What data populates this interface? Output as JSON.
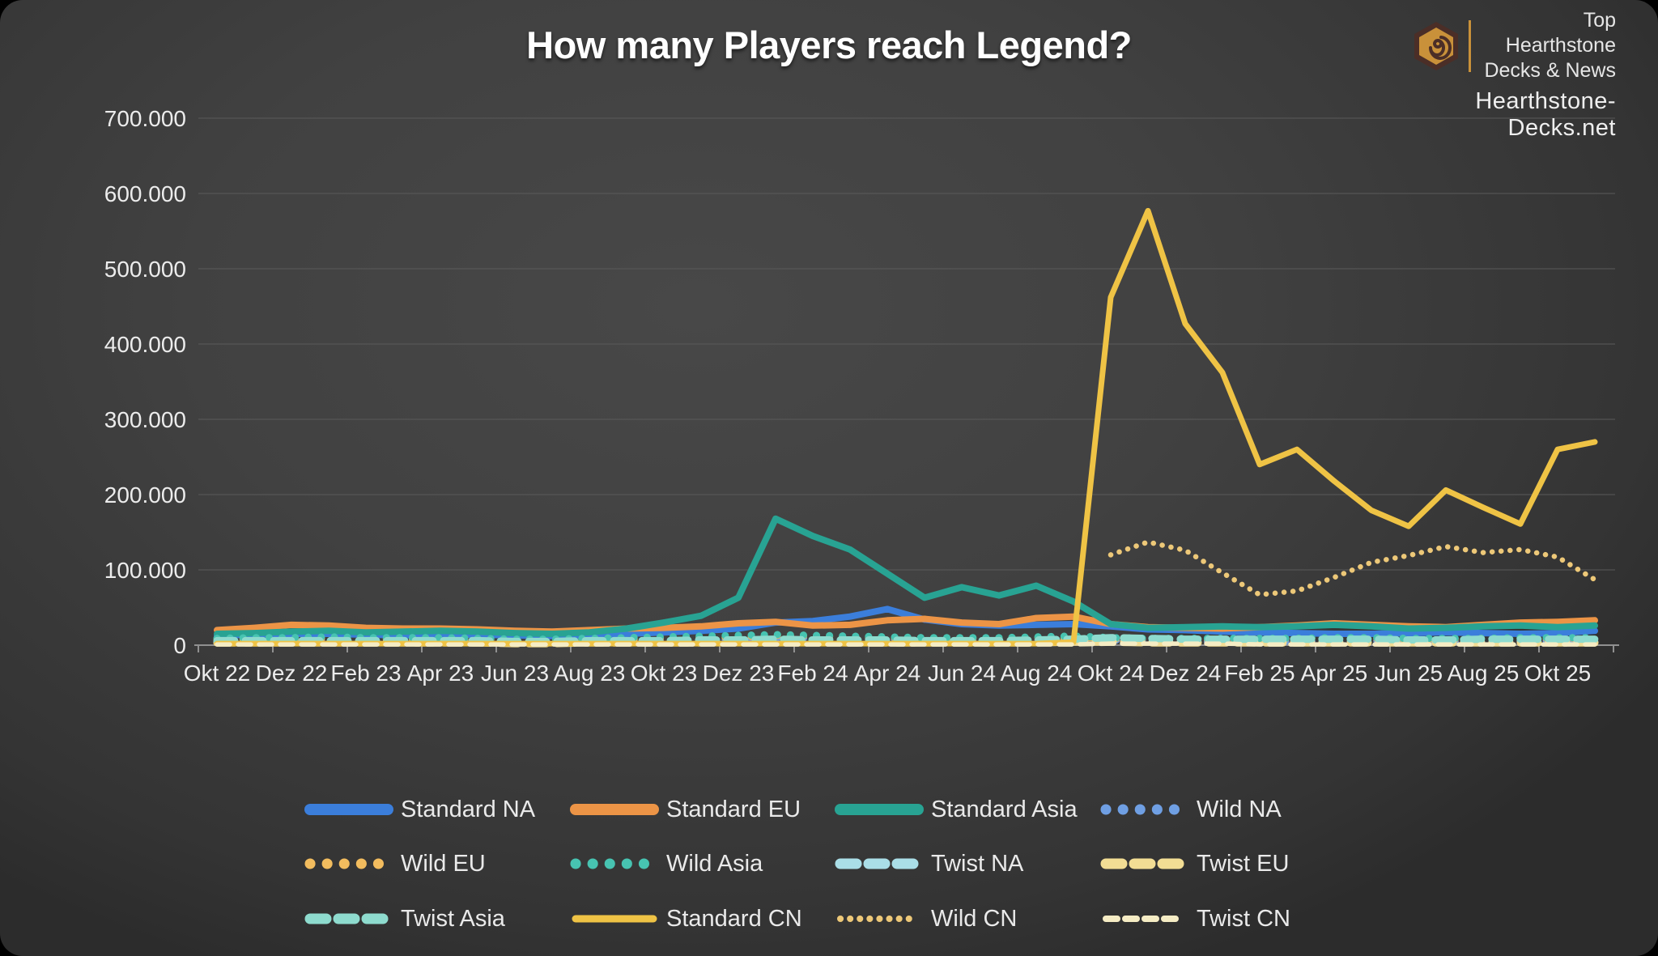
{
  "header": {
    "title": "How many Players reach Legend?"
  },
  "branding": {
    "icon": "hearthstone-hexagon-swirl-icon",
    "line1": "Top Hearthstone",
    "line2": "Decks & News",
    "site": "Hearthstone-Decks.net",
    "accent_color": "#c9913a",
    "hex_outer_color": "#4b2e27",
    "hex_inner_color": "#c9913a"
  },
  "chart_data": {
    "type": "line",
    "title": "How many Players reach Legend?",
    "grid": true,
    "legend_position": "bottom",
    "ylim": [
      0,
      700000
    ],
    "y_axis": {
      "tick_values": [
        0,
        100000,
        200000,
        300000,
        400000,
        500000,
        600000,
        700000
      ],
      "tick_labels": [
        "0",
        "100.000",
        "200.000",
        "300.000",
        "400.000",
        "500.000",
        "600.000",
        "700.000"
      ]
    },
    "x_tick_every": 2,
    "categories": [
      "Okt 22",
      "Nov 22",
      "Dez 22",
      "Jan 23",
      "Feb 23",
      "Mär 23",
      "Apr 23",
      "Mai 23",
      "Jun 23",
      "Jul 23",
      "Aug 23",
      "Sep 23",
      "Okt 23",
      "Nov 23",
      "Dez 23",
      "Jan 24",
      "Feb 24",
      "Mär 24",
      "Apr 24",
      "Mai 24",
      "Jun 24",
      "Jul 24",
      "Aug 24",
      "Sep 24",
      "Okt 24",
      "Nov 24",
      "Dez 24",
      "Jan 25",
      "Feb 25",
      "Mär 25",
      "Apr 25",
      "Mai 25",
      "Jun 25",
      "Jul 25",
      "Aug 25",
      "Sep 25",
      "Okt 25",
      "Nov 25"
    ],
    "series": [
      {
        "name": "Standard NA",
        "color": "#3b7edb",
        "line": "solid",
        "size": "large",
        "values": [
          13000,
          14000,
          15000,
          15000,
          14000,
          13000,
          14000,
          14000,
          13000,
          12000,
          13000,
          15000,
          17000,
          19000,
          22000,
          30000,
          32000,
          38000,
          48000,
          34000,
          28000,
          26000,
          27000,
          28000,
          25000,
          21000,
          20000,
          18000,
          17000,
          16000,
          15000,
          15000,
          16000,
          17000,
          16000,
          15000,
          16000,
          19000
        ]
      },
      {
        "name": "Standard EU",
        "color": "#ec9446",
        "line": "solid",
        "size": "large",
        "values": [
          20000,
          23000,
          27000,
          26000,
          23000,
          22000,
          22000,
          21000,
          19000,
          18000,
          20000,
          22000,
          23000,
          25000,
          29000,
          31000,
          26000,
          27000,
          33000,
          35000,
          30000,
          28000,
          36000,
          38000,
          28000,
          24000,
          23000,
          22000,
          24000,
          26000,
          29000,
          27000,
          25000,
          24000,
          27000,
          30000,
          31000,
          33000
        ]
      },
      {
        "name": "Standard Asia",
        "color": "#28a393",
        "line": "solid",
        "size": "large",
        "values": [
          15000,
          16000,
          18000,
          19000,
          17000,
          18000,
          19000,
          18000,
          16000,
          15000,
          17000,
          22000,
          30000,
          39000,
          63000,
          168000,
          145000,
          127000,
          95000,
          63000,
          77000,
          66000,
          79000,
          58000,
          28000,
          23000,
          24000,
          25000,
          24000,
          25000,
          27000,
          25000,
          22000,
          23000,
          25000,
          26000,
          24000,
          26000
        ]
      },
      {
        "name": "Wild NA",
        "color": "#6f9fe3",
        "line": "dotted",
        "size": "large",
        "values": [
          5000,
          5000,
          6000,
          6000,
          5000,
          5000,
          5000,
          5000,
          4000,
          4000,
          5000,
          5000,
          6000,
          7000,
          8000,
          10000,
          9000,
          8000,
          8000,
          7000,
          6000,
          6000,
          7000,
          8000,
          7000,
          6000,
          5000,
          5000,
          5000,
          5000,
          6000,
          6000,
          5000,
          5000,
          5000,
          6000,
          6000,
          6000
        ]
      },
      {
        "name": "Wild EU",
        "color": "#f2bc5e",
        "line": "dotted",
        "size": "large",
        "values": [
          8000,
          8000,
          9000,
          9000,
          8000,
          8000,
          8000,
          8000,
          7000,
          7000,
          8000,
          8000,
          9000,
          10000,
          11000,
          13000,
          12000,
          11000,
          10000,
          9000,
          9000,
          9000,
          10000,
          10000,
          9000,
          8000,
          8000,
          8000,
          8000,
          9000,
          9000,
          9000,
          8000,
          8000,
          9000,
          9000,
          9000,
          10000
        ]
      },
      {
        "name": "Wild Asia",
        "color": "#47c3b1",
        "line": "dotted",
        "size": "large",
        "values": [
          9000,
          10000,
          10000,
          11000,
          10000,
          10000,
          10000,
          9000,
          8000,
          8000,
          9000,
          10000,
          11000,
          12000,
          13000,
          14000,
          13000,
          12000,
          11000,
          10000,
          10000,
          10000,
          11000,
          12000,
          10000,
          9000,
          9000,
          9000,
          9000,
          9000,
          10000,
          10000,
          9000,
          9000,
          9000,
          10000,
          10000,
          10000
        ]
      },
      {
        "name": "Twist NA",
        "color": "#aadee7",
        "line": "dashed",
        "size": "large",
        "values": [
          4000,
          4000,
          4000,
          4000,
          4000,
          4000,
          4000,
          4000,
          3000,
          3000,
          4000,
          4000,
          4000,
          4000,
          5000,
          5000,
          5000,
          4000,
          4000,
          4000,
          4000,
          4000,
          4000,
          5000,
          5000,
          4000,
          4000,
          4000,
          4000,
          4000,
          4000,
          4000,
          4000,
          4000,
          4000,
          4000,
          4000,
          4000
        ]
      },
      {
        "name": "Twist EU",
        "color": "#f2dd94",
        "line": "dashed",
        "size": "large",
        "values": [
          3000,
          3000,
          3000,
          3000,
          3000,
          3000,
          3000,
          3000,
          2000,
          2000,
          3000,
          3000,
          3000,
          3000,
          4000,
          4000,
          4000,
          3000,
          3000,
          3000,
          3000,
          3000,
          3000,
          4000,
          4000,
          3000,
          3000,
          3000,
          3000,
          3000,
          3000,
          3000,
          3000,
          3000,
          3000,
          3000,
          3000,
          3000
        ]
      },
      {
        "name": "Twist Asia",
        "color": "#8edbce",
        "line": "dashed",
        "size": "large",
        "values": [
          6000,
          6000,
          6000,
          6000,
          6000,
          6000,
          6000,
          6000,
          5000,
          5000,
          6000,
          6000,
          6000,
          7000,
          7000,
          8000,
          7000,
          7000,
          7000,
          6000,
          6000,
          6000,
          7000,
          8000,
          10000,
          9000,
          8000,
          8000,
          8000,
          8000,
          8000,
          8000,
          7000,
          7000,
          8000,
          8000,
          8000,
          8000
        ]
      },
      {
        "name": "Standard CN",
        "color": "#efc345",
        "line": "solid",
        "size": "small",
        "values": [
          2000,
          2000,
          2000,
          2000,
          2000,
          2000,
          2000,
          2000,
          2000,
          2000,
          2000,
          2000,
          2000,
          2000,
          2000,
          2000,
          2000,
          2000,
          2000,
          2000,
          2000,
          2000,
          2000,
          4000,
          462000,
          577000,
          427000,
          362000,
          240000,
          260000,
          218000,
          179000,
          158000,
          206000,
          183000,
          161000,
          260000,
          270000
        ]
      },
      {
        "name": "Wild CN",
        "color": "#edc878",
        "line": "dotted",
        "size": "small",
        "values": [
          null,
          null,
          null,
          null,
          null,
          null,
          null,
          null,
          null,
          null,
          null,
          null,
          null,
          null,
          null,
          null,
          null,
          null,
          null,
          null,
          null,
          null,
          null,
          null,
          120000,
          137000,
          126000,
          96000,
          67000,
          72000,
          90000,
          110000,
          119000,
          131000,
          123000,
          127000,
          117000,
          87000
        ]
      },
      {
        "name": "Twist CN",
        "color": "#f5ecc4",
        "line": "dashed",
        "size": "small",
        "values": [
          1000,
          1000,
          1000,
          1000,
          1000,
          1000,
          1000,
          1000,
          1000,
          1000,
          1000,
          1000,
          1000,
          1000,
          1000,
          1000,
          1000,
          1000,
          1000,
          1000,
          1000,
          1000,
          1000,
          1000,
          2000,
          2000,
          2000,
          2000,
          1000,
          1000,
          1000,
          1000,
          1000,
          1000,
          1000,
          1000,
          1000,
          1000
        ]
      }
    ]
  }
}
